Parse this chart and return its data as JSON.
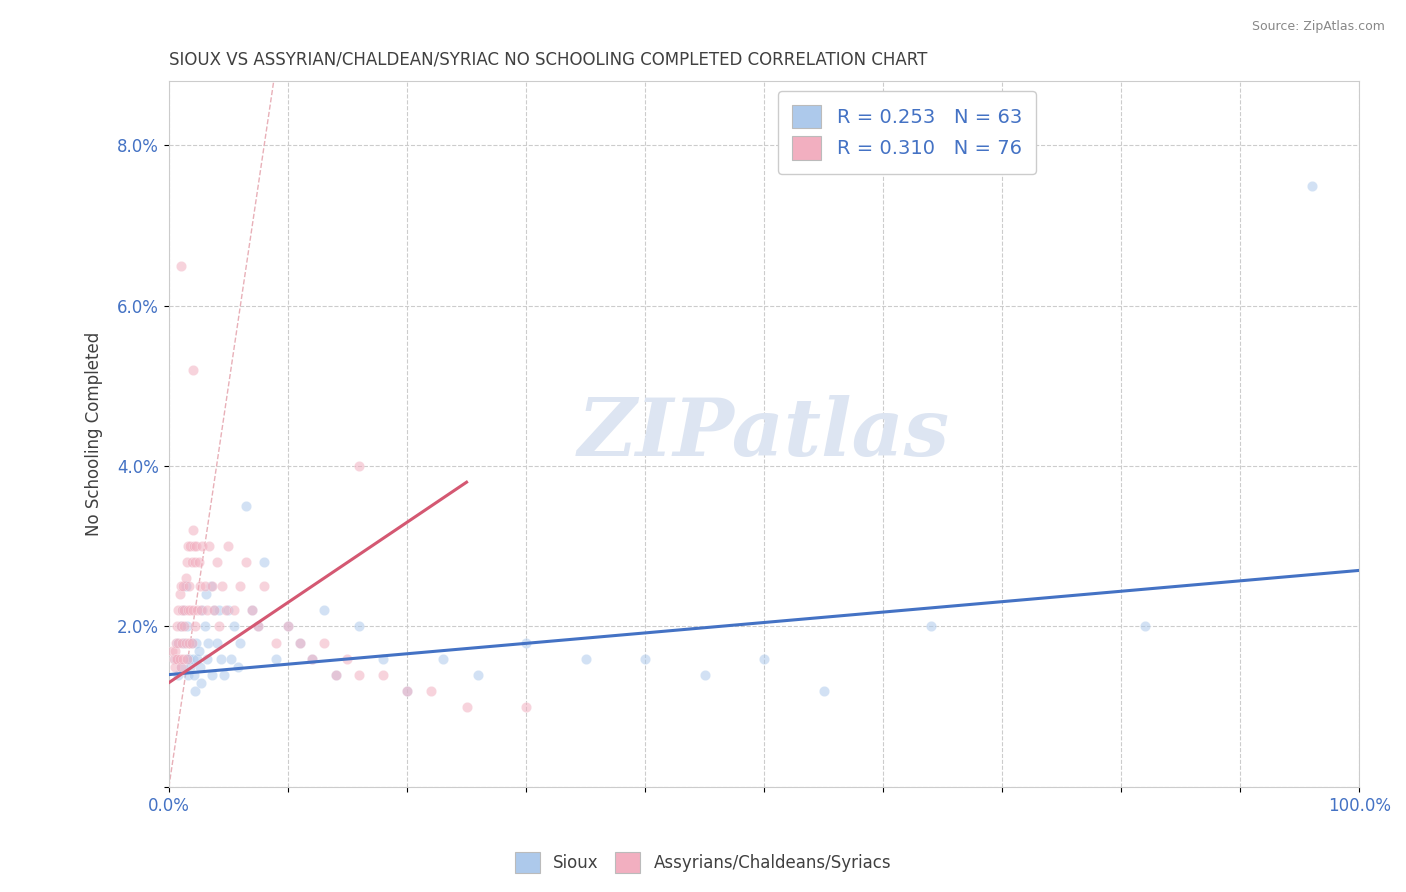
{
  "title": "SIOUX VS ASSYRIAN/CHALDEAN/SYRIAC NO SCHOOLING COMPLETED CORRELATION CHART",
  "source": "Source: ZipAtlas.com",
  "ylabel": "No Schooling Completed",
  "legend_entries": [
    {
      "label": "Sioux",
      "R": "0.253",
      "N": "63",
      "color": "#adc9eb"
    },
    {
      "label": "Assyrians/Chaldeans/Syriacs",
      "R": "0.310",
      "N": "76",
      "color": "#f2afc0"
    }
  ],
  "blue_color": "#adc9eb",
  "pink_color": "#f2afc0",
  "blue_line_color": "#4472c4",
  "pink_line_color": "#d45872",
  "diagonal_color": "#e8b0b8",
  "watermark_text_color": "#dde5f2",
  "background_color": "#ffffff",
  "grid_color": "#cccccc",
  "title_color": "#404040",
  "axis_tick_color": "#4472c4",
  "legend_text_color": "#4472c4",
  "sioux_x": [
    0.005,
    0.007,
    0.008,
    0.01,
    0.01,
    0.012,
    0.013,
    0.014,
    0.015,
    0.015,
    0.016,
    0.017,
    0.018,
    0.019,
    0.02,
    0.021,
    0.022,
    0.023,
    0.024,
    0.025,
    0.026,
    0.027,
    0.028,
    0.03,
    0.031,
    0.032,
    0.033,
    0.035,
    0.036,
    0.038,
    0.04,
    0.042,
    0.044,
    0.046,
    0.05,
    0.052,
    0.055,
    0.058,
    0.06,
    0.065,
    0.07,
    0.075,
    0.08,
    0.09,
    0.1,
    0.11,
    0.12,
    0.13,
    0.14,
    0.16,
    0.18,
    0.2,
    0.23,
    0.26,
    0.3,
    0.35,
    0.4,
    0.45,
    0.5,
    0.55,
    0.64,
    0.82,
    0.96
  ],
  "sioux_y": [
    0.016,
    0.018,
    0.014,
    0.02,
    0.015,
    0.022,
    0.018,
    0.025,
    0.016,
    0.02,
    0.014,
    0.016,
    0.015,
    0.018,
    0.016,
    0.014,
    0.012,
    0.018,
    0.016,
    0.017,
    0.015,
    0.013,
    0.022,
    0.02,
    0.024,
    0.016,
    0.018,
    0.025,
    0.014,
    0.022,
    0.018,
    0.022,
    0.016,
    0.014,
    0.022,
    0.016,
    0.02,
    0.015,
    0.018,
    0.035,
    0.022,
    0.02,
    0.028,
    0.016,
    0.02,
    0.018,
    0.016,
    0.022,
    0.014,
    0.02,
    0.016,
    0.012,
    0.016,
    0.014,
    0.018,
    0.016,
    0.016,
    0.014,
    0.016,
    0.012,
    0.02,
    0.02,
    0.075
  ],
  "assyr_x": [
    0.003,
    0.004,
    0.005,
    0.005,
    0.006,
    0.006,
    0.007,
    0.007,
    0.008,
    0.008,
    0.009,
    0.009,
    0.01,
    0.01,
    0.01,
    0.011,
    0.011,
    0.012,
    0.012,
    0.013,
    0.013,
    0.014,
    0.014,
    0.015,
    0.015,
    0.016,
    0.016,
    0.017,
    0.017,
    0.018,
    0.018,
    0.019,
    0.019,
    0.02,
    0.02,
    0.021,
    0.022,
    0.022,
    0.023,
    0.024,
    0.025,
    0.026,
    0.027,
    0.028,
    0.03,
    0.032,
    0.034,
    0.036,
    0.038,
    0.04,
    0.042,
    0.045,
    0.048,
    0.05,
    0.055,
    0.06,
    0.065,
    0.07,
    0.075,
    0.08,
    0.09,
    0.1,
    0.11,
    0.12,
    0.13,
    0.14,
    0.15,
    0.16,
    0.18,
    0.2,
    0.22,
    0.25,
    0.3,
    0.16,
    0.02,
    0.01
  ],
  "assyr_y": [
    0.017,
    0.016,
    0.017,
    0.015,
    0.018,
    0.016,
    0.02,
    0.016,
    0.022,
    0.018,
    0.024,
    0.016,
    0.025,
    0.02,
    0.015,
    0.022,
    0.018,
    0.025,
    0.016,
    0.022,
    0.02,
    0.026,
    0.018,
    0.028,
    0.016,
    0.03,
    0.022,
    0.025,
    0.018,
    0.03,
    0.022,
    0.028,
    0.018,
    0.032,
    0.022,
    0.03,
    0.028,
    0.02,
    0.03,
    0.022,
    0.028,
    0.025,
    0.022,
    0.03,
    0.025,
    0.022,
    0.03,
    0.025,
    0.022,
    0.028,
    0.02,
    0.025,
    0.022,
    0.03,
    0.022,
    0.025,
    0.028,
    0.022,
    0.02,
    0.025,
    0.018,
    0.02,
    0.018,
    0.016,
    0.018,
    0.014,
    0.016,
    0.014,
    0.014,
    0.012,
    0.012,
    0.01,
    0.01,
    0.04,
    0.052,
    0.065
  ],
  "xlim": [
    0.0,
    1.0
  ],
  "ylim": [
    0.0,
    0.088
  ],
  "yticks": [
    0.0,
    0.02,
    0.04,
    0.06,
    0.08
  ],
  "ytick_labels": [
    "",
    "2.0%",
    "4.0%",
    "6.0%",
    "8.0%"
  ],
  "xticks": [
    0.0,
    0.1,
    0.2,
    0.3,
    0.4,
    0.5,
    0.6,
    0.7,
    0.8,
    0.9,
    1.0
  ],
  "blue_trend_x0": 0.0,
  "blue_trend_x1": 1.0,
  "blue_trend_y0": 0.014,
  "blue_trend_y1": 0.027,
  "pink_trend_x0": 0.0,
  "pink_trend_x1": 0.25,
  "pink_trend_y0": 0.013,
  "pink_trend_y1": 0.038,
  "marker_size": 55,
  "alpha": 0.55
}
